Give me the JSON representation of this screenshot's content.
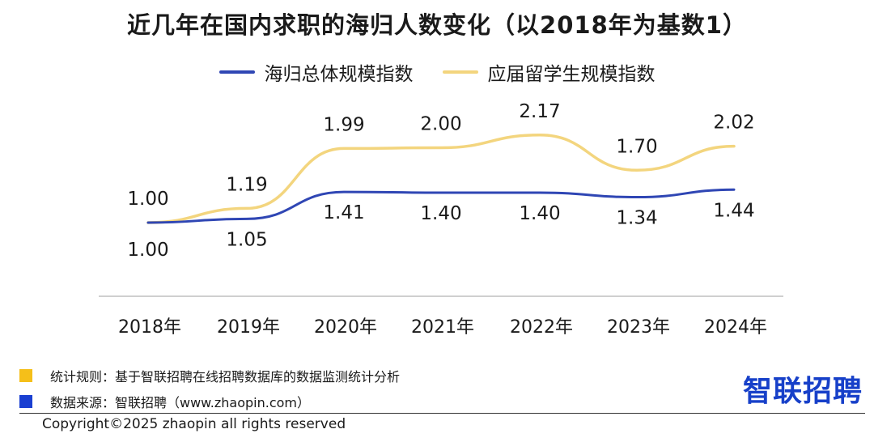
{
  "chart_data": {
    "type": "line",
    "title": "近几年在国内求职的海归人数变化（以2018年为基数1）",
    "categories": [
      "2018年",
      "2019年",
      "2020年",
      "2021年",
      "2022年",
      "2023年",
      "2024年"
    ],
    "series": [
      {
        "name": "海归总体规模指数",
        "color": "#2f46b4",
        "values": [
          1.0,
          1.05,
          1.41,
          1.4,
          1.4,
          1.34,
          1.44
        ],
        "label_position": "below"
      },
      {
        "name": "应届留学生规模指数",
        "color": "#f3d57e",
        "values": [
          1.0,
          1.19,
          1.99,
          2.0,
          2.17,
          1.7,
          2.02
        ],
        "label_position": "above"
      }
    ],
    "data_labels": {
      "总体": [
        "1.00",
        "1.05",
        "1.41",
        "1.40",
        "1.40",
        "1.34",
        "1.44"
      ],
      "应届": [
        "1.00",
        "1.19",
        "1.99",
        "2.00",
        "2.17",
        "1.70",
        "2.02"
      ]
    },
    "legend_position": "top",
    "grid": false
  },
  "notes": [
    {
      "text": "统计规则：基于智联招聘在线招聘数据库的数据监测统计分析",
      "color": "#f5bf19"
    },
    {
      "text": "数据来源：智联招聘（www.zhaopin.com）",
      "color": "#1a3fd1"
    }
  ],
  "logo_text": "智联招聘",
  "copyright": "Copyright©2025 zhaopin all rights reserved"
}
